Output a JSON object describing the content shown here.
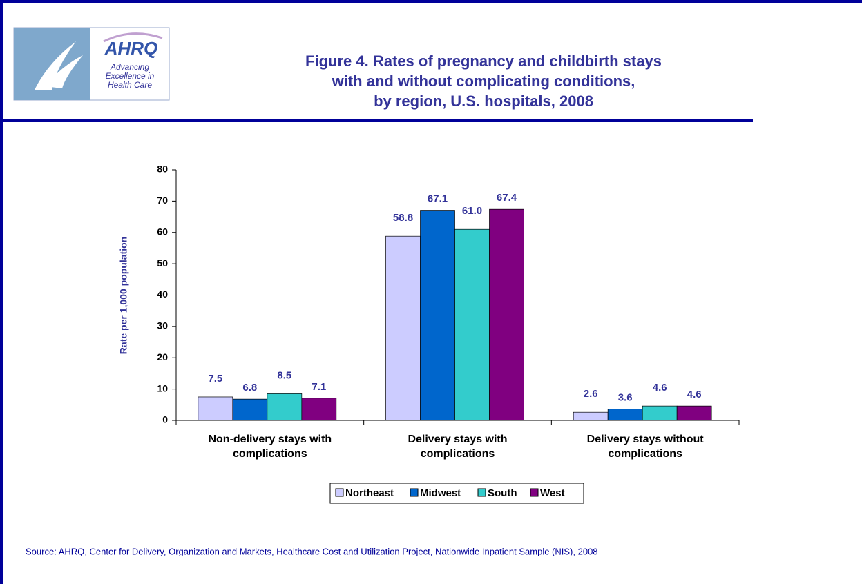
{
  "logo": {
    "name": "AHRQ",
    "tagline": [
      "Advancing",
      "Excellence in",
      "Health Care"
    ]
  },
  "chart_data": {
    "type": "bar",
    "title": [
      "Figure 4. Rates of pregnancy and childbirth stays",
      "with and without complicating conditions,",
      "by region, U.S. hospitals, 2008"
    ],
    "y_label": "Rate per 1,000 population",
    "categories": [
      "Non-delivery stays with complications",
      "Delivery stays with complications",
      "Delivery stays without complications"
    ],
    "series": [
      {
        "name": "Northeast",
        "color": "#ccccff",
        "values": [
          7.5,
          58.8,
          2.6
        ],
        "value_labels": [
          "7.5",
          "58.8",
          "2.6"
        ]
      },
      {
        "name": "Midwest",
        "color": "#0066cc",
        "values": [
          6.8,
          67.1,
          3.6
        ],
        "value_labels": [
          "6.8",
          "67.1",
          "3.6"
        ]
      },
      {
        "name": "South",
        "color": "#33cccc",
        "values": [
          8.5,
          61.0,
          4.6
        ],
        "value_labels": [
          "8.5",
          "61.0",
          "4.6"
        ]
      },
      {
        "name": "West",
        "color": "#800080",
        "values": [
          7.1,
          67.4,
          4.6
        ],
        "value_labels": [
          "7.1",
          "67.4",
          "4.6"
        ]
      }
    ],
    "ylim": [
      0,
      80
    ],
    "yticks": [
      0,
      10,
      20,
      30,
      40,
      50,
      60,
      70,
      80
    ],
    "grid": false,
    "legend": "bottom",
    "source": "Source: AHRQ, Center for Delivery, Organization and Markets, Healthcare Cost and Utilization Project, Nationwide Inpatient Sample (NIS), 2008"
  }
}
